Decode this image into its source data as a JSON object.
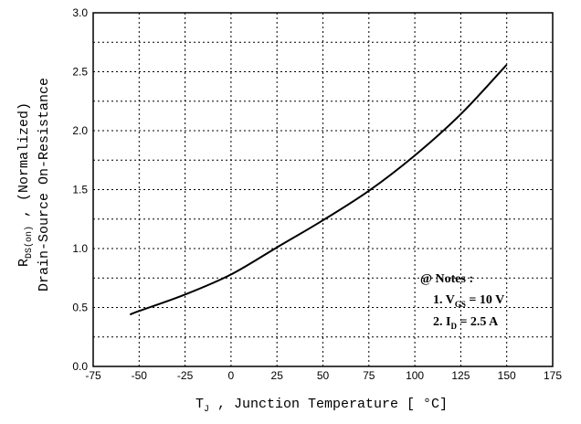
{
  "chart_data": {
    "type": "line",
    "xlabel": "T",
    "xlabel_sub": "J",
    "xlabel_rest": " , Junction Temperature  [ °C]",
    "ylabel_line1_main": "R",
    "ylabel_line1_sub": "DS(on)",
    "ylabel_line1_rest": " ,  (Normalized)",
    "ylabel_line2": "Drain-Source On-Resistance",
    "xlim": [
      -75,
      175
    ],
    "ylim": [
      0.0,
      3.0
    ],
    "xticks": [
      "-75",
      "-50",
      "-25",
      "0",
      "25",
      "50",
      "75",
      "100",
      "125",
      "150",
      "175"
    ],
    "yticks": [
      "0.0",
      "0.5",
      "1.0",
      "1.5",
      "2.0",
      "2.5",
      "3.0"
    ],
    "grid": true,
    "series": [
      {
        "x": [
          -55,
          -50,
          -25,
          0,
          25,
          50,
          75,
          100,
          125,
          150
        ],
        "y": [
          0.44,
          0.47,
          0.61,
          0.78,
          1.01,
          1.24,
          1.49,
          1.79,
          2.14,
          2.56
        ]
      }
    ],
    "notes": {
      "title": "@ Notes :",
      "line1": {
        "prefix": "1. V",
        "sub": "GS",
        "rest": " = 10 V"
      },
      "line2": {
        "prefix": "2. I",
        "sub": "D",
        "rest": " = 2.5 A"
      }
    }
  }
}
